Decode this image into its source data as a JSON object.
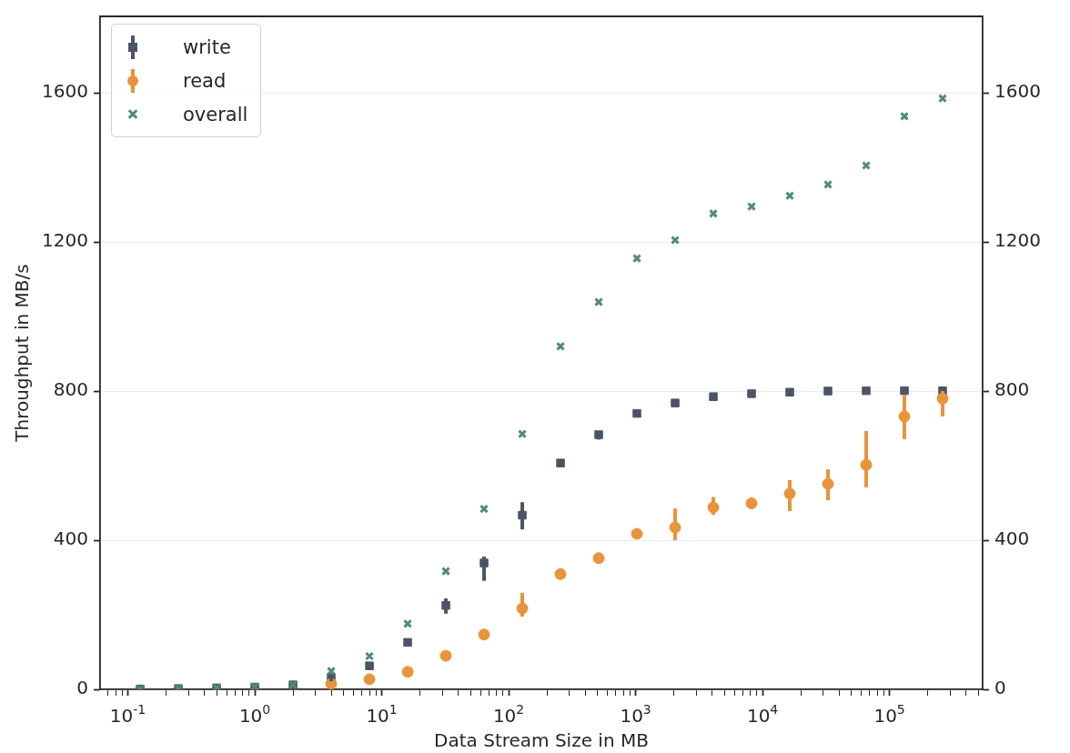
{
  "chart_data": {
    "type": "scatter",
    "xlabel": "Data Stream Size in MB",
    "ylabel": "Throughput in MB/s",
    "x": [
      0.125,
      0.25,
      0.5,
      1,
      2,
      4,
      8,
      16,
      32,
      64,
      128,
      256,
      512,
      1024,
      2048,
      4096,
      8192,
      16384,
      32768,
      65536,
      131072,
      262144
    ],
    "series": [
      {
        "name": "write",
        "color": "#4b5467",
        "marker": "square",
        "values": [
          1,
          2,
          4,
          6,
          12,
          32,
          63,
          126,
          225,
          339,
          467,
          607,
          683,
          740,
          768,
          785,
          793,
          797,
          800,
          801,
          801,
          801
        ],
        "errors": [
          null,
          null,
          null,
          null,
          null,
          [
            22,
            40
          ],
          null,
          [
            118,
            132
          ],
          [
            203,
            244
          ],
          [
            291,
            356
          ],
          [
            429,
            502
          ],
          null,
          [
            670,
            693
          ],
          null,
          null,
          null,
          null,
          null,
          null,
          null,
          null,
          null
        ]
      },
      {
        "name": "read",
        "color": "#e8943a",
        "marker": "circle",
        "values": [
          null,
          null,
          null,
          null,
          null,
          15,
          27,
          47,
          90,
          147,
          217,
          309,
          352,
          417,
          434,
          488,
          499,
          525,
          551,
          602,
          732,
          780
        ],
        "errors": [
          null,
          null,
          null,
          null,
          null,
          null,
          null,
          null,
          null,
          null,
          [
            195,
            259
          ],
          [
            300,
            318
          ],
          [
            340,
            360
          ],
          [
            405,
            428
          ],
          [
            400,
            485
          ],
          [
            468,
            516
          ],
          null,
          [
            478,
            561
          ],
          [
            507,
            590
          ],
          [
            542,
            693
          ],
          [
            671,
            790
          ],
          [
            732,
            800
          ]
        ]
      },
      {
        "name": "overall",
        "color": "#4e8d6e",
        "marker": "cross",
        "values": [
          1,
          2,
          4,
          7,
          12,
          49,
          89,
          176,
          317,
          484,
          685,
          920,
          1039,
          1156,
          1205,
          1276,
          1295,
          1324,
          1354,
          1405,
          1537,
          1585
        ]
      }
    ],
    "log": "x",
    "xlim": [
      0.0604,
      542000
    ],
    "ylim": [
      0,
      1805
    ],
    "y2lim": [
      0,
      1805
    ],
    "xticks": [
      {
        "value": 0.07,
        "label": null
      },
      {
        "value": 0.08,
        "label": null
      },
      {
        "value": 0.09,
        "label": null
      },
      {
        "value": 0.1,
        "label": "10$^{-1}$"
      },
      {
        "value": 0.2,
        "label": null
      },
      {
        "value": 0.3,
        "label": null
      },
      {
        "value": 0.4,
        "label": null
      },
      {
        "value": 0.5,
        "label": null
      },
      {
        "value": 0.6,
        "label": null
      },
      {
        "value": 0.7,
        "label": null
      },
      {
        "value": 0.8,
        "label": null
      },
      {
        "value": 0.9,
        "label": null
      },
      {
        "value": 1,
        "label": "10$^{0}$"
      },
      {
        "value": 2,
        "label": null
      },
      {
        "value": 3,
        "label": null
      },
      {
        "value": 4,
        "label": null
      },
      {
        "value": 5,
        "label": null
      },
      {
        "value": 6,
        "label": null
      },
      {
        "value": 7,
        "label": null
      },
      {
        "value": 8,
        "label": null
      },
      {
        "value": 9,
        "label": null
      },
      {
        "value": 10,
        "label": "10$^{1}$"
      },
      {
        "value": 20,
        "label": null
      },
      {
        "value": 30,
        "label": null
      },
      {
        "value": 40,
        "label": null
      },
      {
        "value": 50,
        "label": null
      },
      {
        "value": 60,
        "label": null
      },
      {
        "value": 70,
        "label": null
      },
      {
        "value": 80,
        "label": null
      },
      {
        "value": 90,
        "label": null
      },
      {
        "value": 100,
        "label": "10$^{2}$"
      },
      {
        "value": 200,
        "label": null
      },
      {
        "value": 300,
        "label": null
      },
      {
        "value": 400,
        "label": null
      },
      {
        "value": 500,
        "label": null
      },
      {
        "value": 600,
        "label": null
      },
      {
        "value": 700,
        "label": null
      },
      {
        "value": 800,
        "label": null
      },
      {
        "value": 900,
        "label": null
      },
      {
        "value": 1000,
        "label": "10$^{3}$"
      },
      {
        "value": 2000,
        "label": null
      },
      {
        "value": 3000,
        "label": null
      },
      {
        "value": 4000,
        "label": null
      },
      {
        "value": 5000,
        "label": null
      },
      {
        "value": 6000,
        "label": null
      },
      {
        "value": 7000,
        "label": null
      },
      {
        "value": 8000,
        "label": null
      },
      {
        "value": 9000,
        "label": null
      },
      {
        "value": 10000,
        "label": "10$^{4}$"
      },
      {
        "value": 20000,
        "label": null
      },
      {
        "value": 30000,
        "label": null
      },
      {
        "value": 40000,
        "label": null
      },
      {
        "value": 50000,
        "label": null
      },
      {
        "value": 60000,
        "label": null
      },
      {
        "value": 70000,
        "label": null
      },
      {
        "value": 80000,
        "label": null
      },
      {
        "value": 90000,
        "label": null
      },
      {
        "value": 100000,
        "label": "10$^{5}$"
      },
      {
        "value": 200000,
        "label": null
      },
      {
        "value": 300000,
        "label": null
      },
      {
        "value": 400000,
        "label": null
      },
      {
        "value": 500000,
        "label": null
      }
    ],
    "yticks": [
      0,
      400,
      800,
      1200,
      1600
    ],
    "y2ticks": [
      0,
      400,
      800,
      1200,
      1600
    ],
    "grid": "y",
    "legend": "top left"
  }
}
